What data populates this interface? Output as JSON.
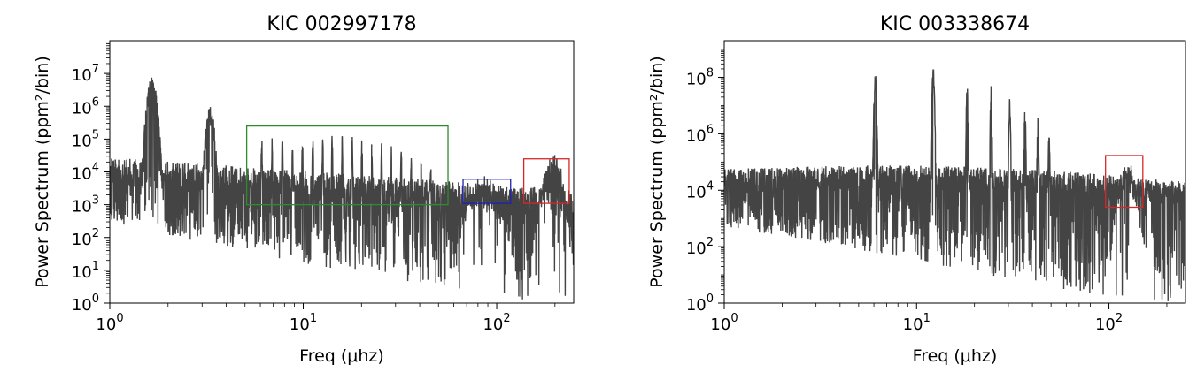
{
  "chart_data": [
    {
      "type": "line",
      "title": "KIC 002997178",
      "xlabel": "Freq (μhz)",
      "ylabel": "Power Spectrum (ppm²/bin)",
      "xscale": "log",
      "yscale": "log",
      "xlim": [
        1,
        250
      ],
      "ylim": [
        1,
        100000000
      ],
      "grid": false,
      "series_color": "#444444",
      "xticks": [
        {
          "value": 1,
          "base": "10",
          "exp": "0"
        },
        {
          "value": 10,
          "base": "10",
          "exp": "1"
        },
        {
          "value": 100,
          "base": "10",
          "exp": "2"
        }
      ],
      "yticks": [
        {
          "value": 1,
          "base": "10",
          "exp": "0"
        },
        {
          "value": 10,
          "base": "10",
          "exp": "1"
        },
        {
          "value": 100,
          "base": "10",
          "exp": "2"
        },
        {
          "value": 1000,
          "base": "10",
          "exp": "3"
        },
        {
          "value": 10000,
          "base": "10",
          "exp": "4"
        },
        {
          "value": 100000,
          "base": "10",
          "exp": "5"
        },
        {
          "value": 1000000,
          "base": "10",
          "exp": "6"
        },
        {
          "value": 10000000,
          "base": "10",
          "exp": "7"
        }
      ],
      "floor_range": [
        30,
        8000
      ],
      "noise_envelope": {
        "low": 1000,
        "high": 10000
      },
      "peaks": [
        {
          "x": 1.65,
          "y": 8000000,
          "w": 0.035
        },
        {
          "x": 3.3,
          "y": 1000000,
          "w": 0.03
        },
        {
          "x": 6.1,
          "y": 150000,
          "w": 0.004
        },
        {
          "x": 6.9,
          "y": 120000,
          "w": 0.004
        },
        {
          "x": 7.8,
          "y": 160000,
          "w": 0.004
        },
        {
          "x": 8.8,
          "y": 110000,
          "w": 0.004
        },
        {
          "x": 9.9,
          "y": 140000,
          "w": 0.004
        },
        {
          "x": 11.2,
          "y": 150000,
          "w": 0.004
        },
        {
          "x": 12.6,
          "y": 130000,
          "w": 0.004
        },
        {
          "x": 14.1,
          "y": 150000,
          "w": 0.004
        },
        {
          "x": 15.9,
          "y": 140000,
          "w": 0.004
        },
        {
          "x": 17.9,
          "y": 140000,
          "w": 0.004
        },
        {
          "x": 20.1,
          "y": 130000,
          "w": 0.004
        },
        {
          "x": 22.6,
          "y": 110000,
          "w": 0.004
        },
        {
          "x": 25.4,
          "y": 90000,
          "w": 0.004
        },
        {
          "x": 28.5,
          "y": 70000,
          "w": 0.004
        },
        {
          "x": 32.1,
          "y": 50000,
          "w": 0.004
        },
        {
          "x": 36.1,
          "y": 40000,
          "w": 0.004
        },
        {
          "x": 40.6,
          "y": 30000,
          "w": 0.004
        },
        {
          "x": 45.6,
          "y": 20000,
          "w": 0.004
        }
      ],
      "humps": [
        {
          "x": 85,
          "y": 5000,
          "w": 0.1
        },
        {
          "x": 195,
          "y": 20000,
          "w": 0.06
        }
      ],
      "boxes": [
        {
          "x0": 5.1,
          "x1": 56,
          "y0": 1000,
          "y1": 250000,
          "color": "#2e8b2e"
        },
        {
          "x0": 67,
          "x1": 118,
          "y0": 1100,
          "y1": 6000,
          "color": "#1f1fb4"
        },
        {
          "x0": 138,
          "x1": 237,
          "y0": 1100,
          "y1": 25000,
          "color": "#d62728"
        }
      ]
    },
    {
      "type": "line",
      "title": "KIC 003338674",
      "xlabel": "Freq (μhz)",
      "ylabel": "Power Spectrum (ppm²/bin)",
      "xscale": "log",
      "yscale": "log",
      "xlim": [
        1,
        250
      ],
      "ylim": [
        1,
        2000000000
      ],
      "grid": false,
      "series_color": "#444444",
      "xticks": [
        {
          "value": 1,
          "base": "10",
          "exp": "0"
        },
        {
          "value": 10,
          "base": "10",
          "exp": "1"
        },
        {
          "value": 100,
          "base": "10",
          "exp": "2"
        }
      ],
      "yticks": [
        {
          "value": 1,
          "base": "10",
          "exp": "0"
        },
        {
          "value": 100,
          "base": "10",
          "exp": "2"
        },
        {
          "value": 10000,
          "base": "10",
          "exp": "4"
        },
        {
          "value": 1000000,
          "base": "10",
          "exp": "6"
        },
        {
          "value": 100000000,
          "base": "10",
          "exp": "8"
        }
      ],
      "floor_range": [
        30,
        8000
      ],
      "noise_envelope": {
        "low": 5000,
        "high": 60000
      },
      "peaks": [
        {
          "x": 6.1,
          "y": 200000000,
          "w": 0.008
        },
        {
          "x": 12.2,
          "y": 250000000,
          "w": 0.008
        },
        {
          "x": 18.3,
          "y": 70000000,
          "w": 0.005
        },
        {
          "x": 24.4,
          "y": 50000000,
          "w": 0.005
        },
        {
          "x": 30.5,
          "y": 20000000,
          "w": 0.005
        },
        {
          "x": 36.6,
          "y": 10000000,
          "w": 0.005
        },
        {
          "x": 42.7,
          "y": 4000000,
          "w": 0.005
        },
        {
          "x": 48.8,
          "y": 1500000,
          "w": 0.005
        }
      ],
      "humps": [
        {
          "x": 125,
          "y": 60000,
          "w": 0.05
        }
      ],
      "boxes": [
        {
          "x0": 96,
          "x1": 150,
          "y0": 2500,
          "y1": 170000,
          "color": "#d62728"
        }
      ]
    }
  ]
}
